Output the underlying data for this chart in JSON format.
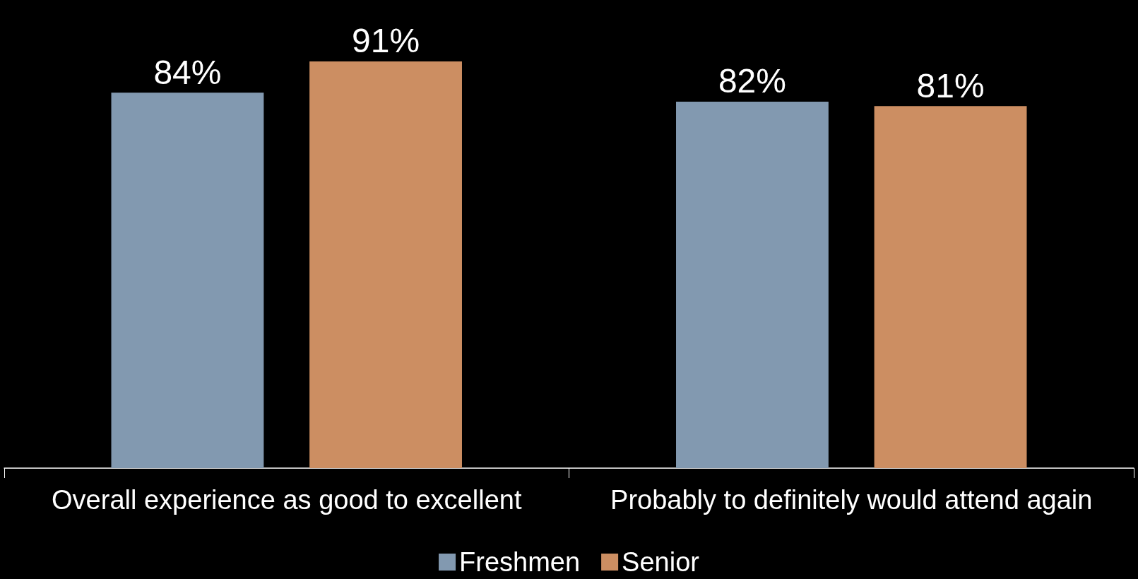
{
  "chart_data": {
    "type": "bar",
    "categories": [
      "Overall experience as good to excellent",
      "Probably to definitely would attend again"
    ],
    "series": [
      {
        "name": "Freshmen",
        "color": "#8299b0",
        "values": [
          84,
          82
        ],
        "value_labels": [
          "84%",
          "82%"
        ]
      },
      {
        "name": "Senior",
        "color": "#cc8e62",
        "values": [
          91,
          81
        ],
        "value_labels": [
          "91%",
          "81%"
        ]
      }
    ],
    "legend": "bottom"
  }
}
